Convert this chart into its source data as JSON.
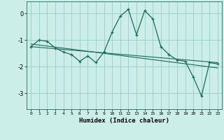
{
  "xlabel": "Humidex (Indice chaleur)",
  "bg_color": "#cceee8",
  "grid_color": "#99cccc",
  "line_color": "#1a6b5a",
  "xlim": [
    -0.5,
    23.5
  ],
  "ylim": [
    -3.6,
    0.45
  ],
  "yticks": [
    0,
    -1,
    -2,
    -3
  ],
  "xticks": [
    0,
    1,
    2,
    3,
    4,
    5,
    6,
    7,
    8,
    9,
    10,
    11,
    12,
    13,
    14,
    15,
    16,
    17,
    18,
    19,
    20,
    21,
    22,
    23
  ],
  "humidex_x": [
    0,
    1,
    2,
    3,
    4,
    5,
    6,
    7,
    8,
    9,
    10,
    11,
    12,
    13,
    14,
    15,
    16,
    17,
    18,
    19,
    20,
    21,
    22,
    23
  ],
  "humidex_y": [
    -1.25,
    -1.0,
    -1.05,
    -1.3,
    -1.45,
    -1.55,
    -1.8,
    -1.6,
    -1.85,
    -1.45,
    -0.7,
    -0.1,
    0.15,
    -0.8,
    0.1,
    -0.2,
    -1.25,
    -1.55,
    -1.75,
    -1.8,
    -2.4,
    -3.1,
    -1.85,
    -1.9
  ],
  "trend1_x": [
    0,
    23
  ],
  "trend1_y": [
    -1.15,
    -2.05
  ],
  "trend2_x": [
    0,
    23
  ],
  "trend2_y": [
    -1.25,
    -1.85
  ]
}
